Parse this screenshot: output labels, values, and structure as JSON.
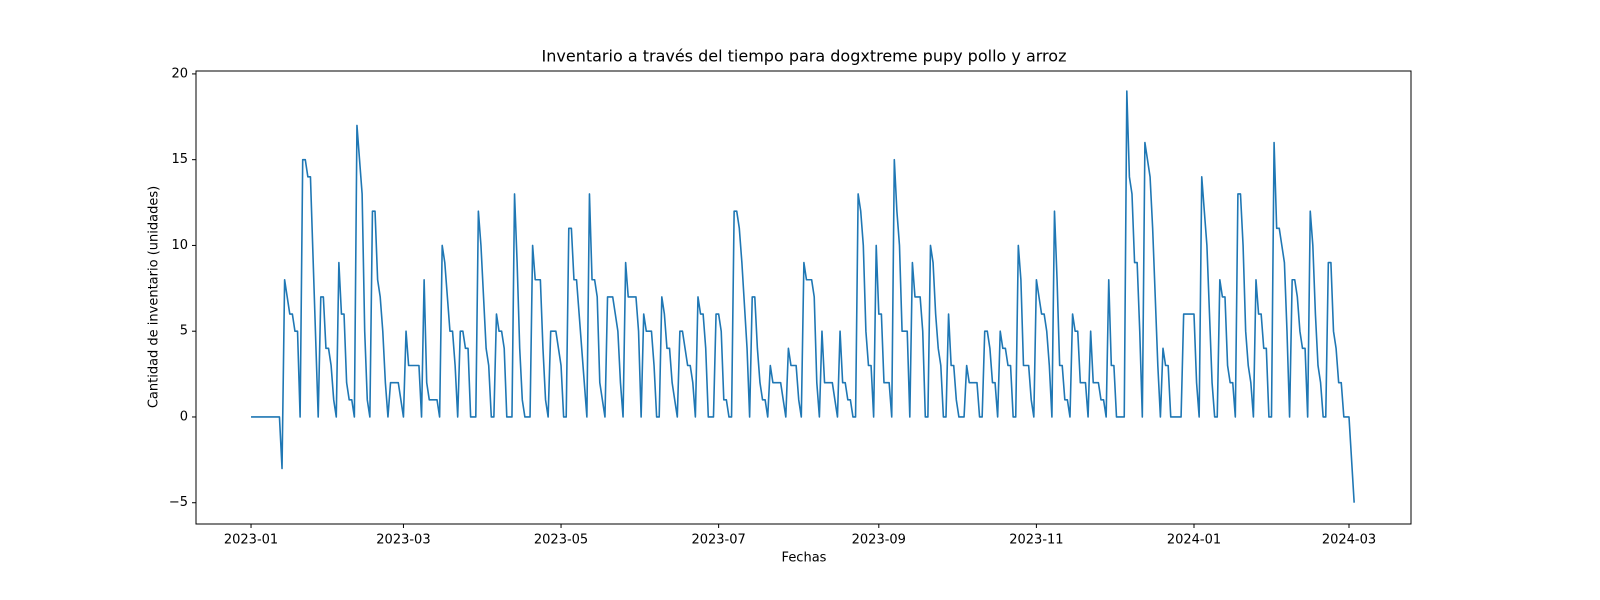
{
  "chart_data": {
    "type": "line",
    "title": "Inventario a través del tiempo para dogxtreme pupy pollo y arroz",
    "xlabel": "Fechas",
    "ylabel": "Cantidad de inventario (unidades)",
    "xlim": [
      -21.3,
      449.0
    ],
    "ylim": [
      -6.24,
      20.17
    ],
    "xticks": [
      {
        "value": 0,
        "label": "2023-01"
      },
      {
        "value": 59,
        "label": "2023-03"
      },
      {
        "value": 120,
        "label": "2023-05"
      },
      {
        "value": 181,
        "label": "2023-07"
      },
      {
        "value": 243,
        "label": "2023-09"
      },
      {
        "value": 304,
        "label": "2023-11"
      },
      {
        "value": 365,
        "label": "2024-01"
      },
      {
        "value": 425,
        "label": "2024-03"
      }
    ],
    "yticks": [
      {
        "value": -5,
        "label": "−5"
      },
      0,
      5,
      10,
      15,
      20
    ],
    "color": "#1f77b4",
    "x": [
      0,
      11,
      12,
      13,
      15,
      16,
      17,
      18,
      19,
      20,
      21,
      22,
      23,
      26,
      27,
      28,
      29,
      30,
      31,
      32,
      33,
      34,
      35,
      36,
      37,
      38,
      39,
      40,
      41,
      43,
      44,
      45,
      46,
      47,
      48,
      49,
      50,
      51,
      52,
      53,
      54,
      57,
      59,
      60,
      61,
      65,
      66,
      67,
      68,
      69,
      72,
      73,
      74,
      75,
      77,
      78,
      79,
      80,
      81,
      82,
      83,
      84,
      85,
      87,
      88,
      89,
      91,
      92,
      93,
      94,
      95,
      96,
      97,
      98,
      99,
      101,
      102,
      103,
      104,
      105,
      106,
      108,
      109,
      110,
      112,
      113,
      114,
      115,
      116,
      118,
      119,
      120,
      121,
      122,
      123,
      124,
      125,
      126,
      127,
      129,
      130,
      131,
      132,
      133,
      134,
      135,
      136,
      137,
      138,
      140,
      141,
      142,
      143,
      144,
      145,
      146,
      149,
      150,
      151,
      152,
      153,
      155,
      156,
      157,
      158,
      159,
      160,
      161,
      162,
      163,
      164,
      165,
      166,
      167,
      168,
      169,
      170,
      171,
      172,
      173,
      174,
      175,
      176,
      177,
      179,
      180,
      181,
      182,
      183,
      184,
      185,
      186,
      187,
      188,
      189,
      190,
      192,
      193,
      194,
      195,
      196,
      197,
      198,
      199,
      200,
      201,
      202,
      205,
      206,
      207,
      208,
      209,
      211,
      212,
      213,
      214,
      215,
      217,
      218,
      219,
      220,
      221,
      222,
      225,
      226,
      227,
      228,
      229,
      230,
      231,
      232,
      233,
      234,
      235,
      236,
      237,
      238,
      239,
      240,
      241,
      242,
      243,
      244,
      245,
      247,
      248,
      249,
      250,
      251,
      252,
      254,
      255,
      256,
      257,
      259,
      260,
      261,
      262,
      263,
      264,
      265,
      266,
      267,
      268,
      269,
      270,
      271,
      272,
      273,
      274,
      276,
      277,
      278,
      281,
      282,
      283,
      284,
      285,
      286,
      287,
      288,
      289,
      290,
      291,
      292,
      293,
      294,
      295,
      296,
      297,
      298,
      299,
      301,
      302,
      303,
      304,
      305,
      306,
      307,
      308,
      309,
      310,
      311,
      312,
      313,
      314,
      315,
      316,
      317,
      318,
      319,
      320,
      321,
      323,
      324,
      325,
      326,
      328,
      329,
      330,
      331,
      332,
      333,
      334,
      335,
      338,
      339,
      340,
      341,
      342,
      343,
      344,
      345,
      346,
      348,
      349,
      350,
      351,
      352,
      353,
      354,
      355,
      356,
      360,
      361,
      365,
      366,
      367,
      368,
      369,
      370,
      372,
      373,
      374,
      375,
      376,
      377,
      378,
      379,
      380,
      381,
      382,
      383,
      384,
      385,
      386,
      387,
      388,
      389,
      390,
      391,
      392,
      393,
      394,
      395,
      396,
      397,
      398,
      399,
      400,
      401,
      402,
      403,
      404,
      405,
      406,
      407,
      408,
      409,
      410,
      411,
      412,
      413,
      414,
      415,
      416,
      417,
      418,
      419,
      420,
      421,
      422,
      423,
      425,
      427
    ],
    "values": [
      0,
      0,
      -3,
      8,
      6,
      6,
      5,
      5,
      0,
      15,
      15,
      14,
      14,
      0,
      7,
      7,
      4,
      4,
      3,
      1,
      0,
      9,
      6,
      6,
      2,
      1,
      1,
      0,
      17,
      13,
      5,
      1,
      0,
      12,
      12,
      8,
      7,
      5,
      2,
      0,
      2,
      2,
      0,
      5,
      3,
      3,
      0,
      8,
      2,
      1,
      1,
      0,
      10,
      9,
      5,
      5,
      3,
      0,
      5,
      5,
      4,
      4,
      0,
      0,
      12,
      10,
      4,
      3,
      0,
      0,
      6,
      5,
      5,
      4,
      0,
      0,
      13,
      9,
      4,
      1,
      0,
      0,
      10,
      8,
      8,
      4,
      1,
      0,
      5,
      5,
      4,
      3,
      0,
      0,
      11,
      11,
      8,
      8,
      6,
      2,
      0,
      13,
      8,
      8,
      7,
      2,
      1,
      0,
      7,
      7,
      6,
      5,
      2,
      0,
      9,
      7,
      7,
      5,
      0,
      6,
      5,
      5,
      3,
      0,
      0,
      7,
      6,
      4,
      4,
      2,
      1,
      0,
      5,
      5,
      4,
      3,
      3,
      2,
      0,
      7,
      6,
      6,
      4,
      0,
      0,
      6,
      6,
      5,
      1,
      1,
      0,
      0,
      12,
      12,
      11,
      9,
      4,
      0,
      7,
      7,
      4,
      2,
      1,
      1,
      0,
      3,
      2,
      2,
      1,
      0,
      4,
      3,
      3,
      1,
      0,
      9,
      8,
      8,
      7,
      2,
      0,
      5,
      2,
      2,
      1,
      0,
      5,
      2,
      2,
      1,
      1,
      0,
      0,
      13,
      12,
      10,
      5,
      3,
      3,
      0,
      10,
      6,
      6,
      2,
      2,
      0,
      15,
      12,
      10,
      5,
      5,
      0,
      9,
      7,
      7,
      5,
      0,
      0,
      10,
      9,
      6,
      4,
      3,
      0,
      0,
      6,
      3,
      3,
      1,
      0,
      0,
      3,
      2,
      2,
      0,
      0,
      5,
      5,
      4,
      2,
      2,
      0,
      5,
      4,
      4,
      3,
      3,
      0,
      0,
      10,
      8,
      3,
      3,
      1,
      0,
      8,
      7,
      6,
      6,
      5,
      3,
      0,
      12,
      8,
      3,
      3,
      1,
      1,
      0,
      6,
      5,
      5,
      2,
      2,
      0,
      5,
      2,
      2,
      1,
      1,
      0,
      8,
      3,
      3,
      0,
      0,
      19,
      14,
      13,
      9,
      9,
      5,
      0,
      16,
      14,
      11,
      7,
      3,
      0,
      4,
      3,
      3,
      0,
      0,
      6,
      6,
      2,
      0,
      14,
      12,
      10,
      2,
      0,
      0,
      8,
      7,
      7,
      3,
      2,
      2,
      0,
      13,
      13,
      10,
      5,
      3,
      2,
      0,
      8,
      6,
      6,
      4,
      4,
      0,
      0,
      16,
      11,
      11,
      10,
      9,
      5,
      0,
      8,
      8,
      7,
      5,
      4,
      4,
      0,
      12,
      10,
      6,
      3,
      2,
      0,
      0,
      9,
      9,
      5,
      4,
      2,
      2,
      0,
      0,
      -5
    ]
  }
}
